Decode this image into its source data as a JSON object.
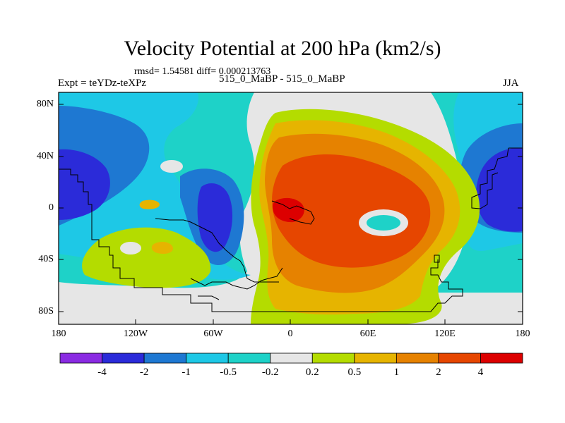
{
  "title": "Velocity Potential at 200 hPa (km2/s)",
  "stats": "rmsd= 1.54581 diff= 0.000213763",
  "left_label": "Expt = teYDz-teXPz",
  "center_label": "515_0_MaBP - 515_0_MaBP",
  "right_label": "JJA",
  "lat_ticks": [
    "80N",
    "40N",
    "0",
    "40S",
    "80S"
  ],
  "lon_ticks": [
    "180",
    "120W",
    "60W",
    "0",
    "60E",
    "120E",
    "180"
  ],
  "colorbar": {
    "colors": [
      "#8a2be2",
      "#2b2bd9",
      "#1e78d2",
      "#1ec8e6",
      "#1ed2c8",
      "#e6e6e6",
      "#b4dc00",
      "#e6b400",
      "#e68200",
      "#e64600",
      "#dc0000"
    ],
    "labels": [
      "-4",
      "-2",
      "-1",
      "-0.5",
      "-0.2",
      "0.2",
      "0.5",
      "1",
      "2",
      "4"
    ]
  }
}
